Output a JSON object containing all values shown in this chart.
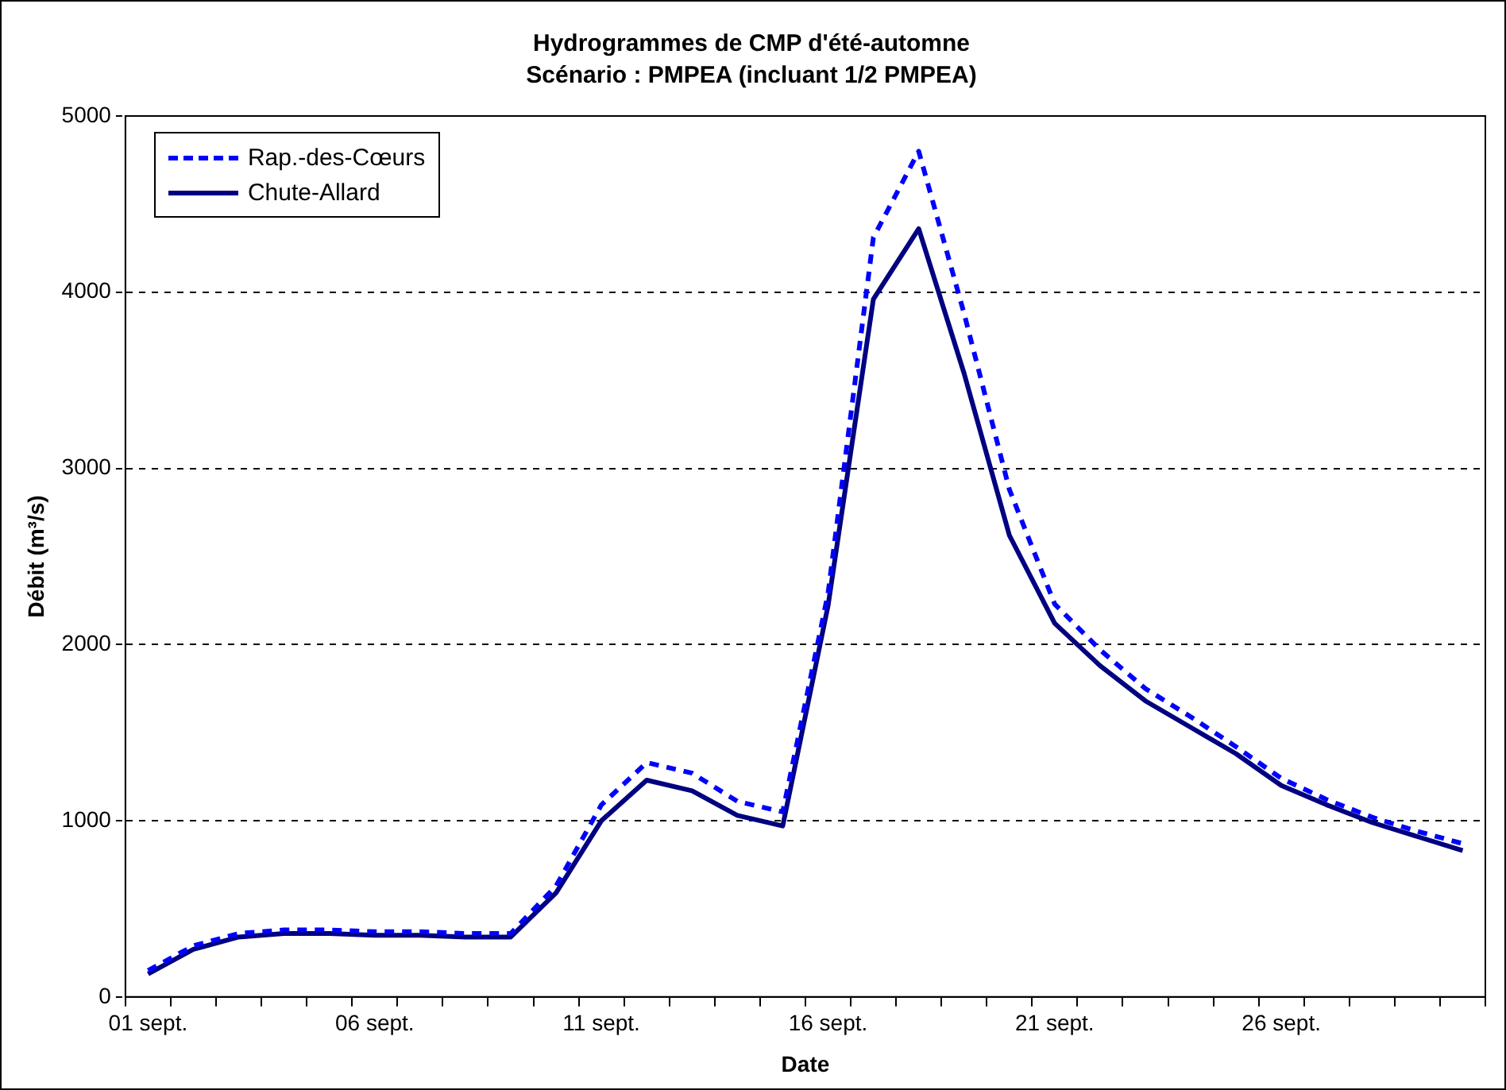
{
  "chart_data": {
    "type": "line",
    "title": "Hydrogrammes de CMP d'été-automne",
    "subtitle": "Scénario : PMPEA (incluant 1/2 PMPEA)",
    "xlabel": "Date",
    "ylabel": "Débit (m³/s)",
    "categories": [
      "01 sept.",
      null,
      null,
      null,
      null,
      "06 sept.",
      null,
      null,
      null,
      null,
      "11 sept.",
      null,
      null,
      null,
      null,
      "16 sept.",
      null,
      null,
      null,
      null,
      "21 sept.",
      null,
      null,
      null,
      null,
      "26 sept.",
      null,
      null,
      null,
      null
    ],
    "series": [
      {
        "name": "Rap.-des-Cœurs",
        "color": "#0000ff",
        "line_style": "dashed",
        "values": [
          150,
          290,
          360,
          380,
          380,
          370,
          370,
          360,
          360,
          630,
          1090,
          1330,
          1270,
          1110,
          1050,
          2290,
          4310,
          4800,
          3880,
          2880,
          2230,
          1970,
          1750,
          1590,
          1420,
          1240,
          1120,
          1020,
          940,
          870
        ]
      },
      {
        "name": "Chute-Allard",
        "color": "#000080",
        "line_style": "solid",
        "values": [
          130,
          270,
          340,
          360,
          360,
          350,
          350,
          340,
          340,
          590,
          1000,
          1230,
          1170,
          1030,
          970,
          2220,
          3960,
          4360,
          3540,
          2620,
          2120,
          1880,
          1680,
          1530,
          1380,
          1200,
          1090,
          990,
          910,
          830
        ]
      }
    ],
    "ylim": [
      0,
      5000
    ],
    "yticks": [
      0,
      1000,
      2000,
      3000,
      4000,
      5000
    ],
    "grid": "y",
    "legend": "top left",
    "marker": "none"
  }
}
